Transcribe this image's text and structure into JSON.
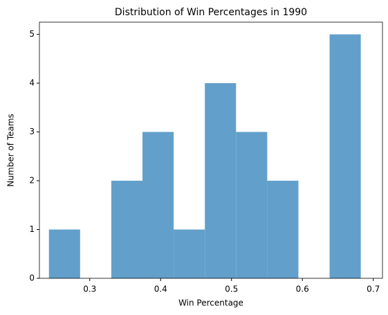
{
  "chart_data": {
    "type": "histogram",
    "title": "Distribution of Win Percentages in 1990",
    "x_label": "Win Percentage",
    "y_label": "Number of Teams",
    "bins": [
      0.2424,
      0.2864,
      0.3304,
      0.3744,
      0.4184,
      0.4624,
      0.5064,
      0.5504,
      0.5944,
      0.6384,
      0.6824
    ],
    "values": [
      1,
      0,
      2,
      3,
      1,
      4,
      3,
      2,
      0,
      5
    ],
    "color": "#62a0cb",
    "xlim": [
      0.229,
      0.713
    ],
    "xticks": [
      0.3,
      0.4,
      0.5,
      0.6,
      0.7
    ],
    "ylim": [
      0,
      5.25
    ],
    "yticks": [
      0,
      1,
      2,
      3,
      4,
      5
    ],
    "grid": false
  }
}
